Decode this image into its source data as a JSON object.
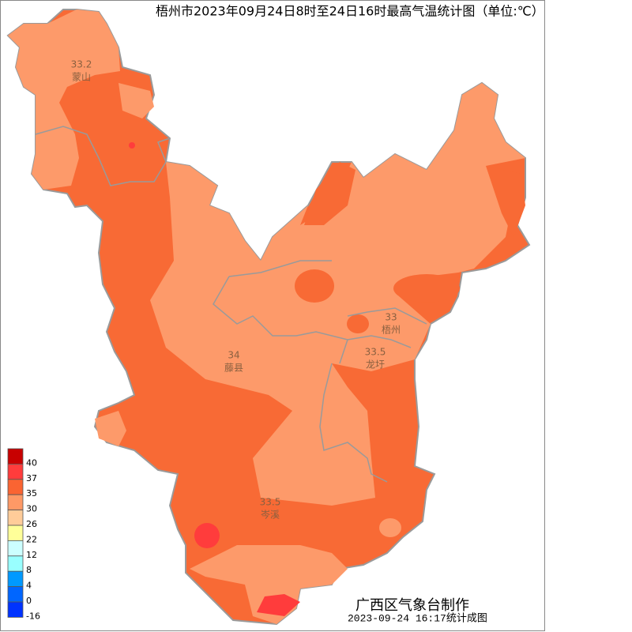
{
  "title": "梧州市2023年09月24日8时至24日16时最高气温统计图（单位:℃）",
  "stations": [
    {
      "value": 33.2,
      "name": "蒙山"
    },
    {
      "value": 34,
      "name": "藤县"
    },
    {
      "value": 33,
      "name": "梧州"
    },
    {
      "value": 33.5,
      "name": "龙圩"
    },
    {
      "value": 33.5,
      "name": "岑溪"
    }
  ],
  "legend": {
    "labels": [
      40,
      37,
      35,
      30,
      26,
      22,
      12,
      8,
      4,
      0,
      -16
    ],
    "colors": [
      "#c80000",
      "#ff3c3c",
      "#fa6432",
      "#ff9966",
      "#ffcc99",
      "#ffff99",
      "#ccffff",
      "#99ffff",
      "#0099ff",
      "#0066ff",
      "#0033ff"
    ]
  },
  "credits": {
    "maker": "广西区气象台制作",
    "time": "2023-09-24 16:17统计成图"
  }
}
